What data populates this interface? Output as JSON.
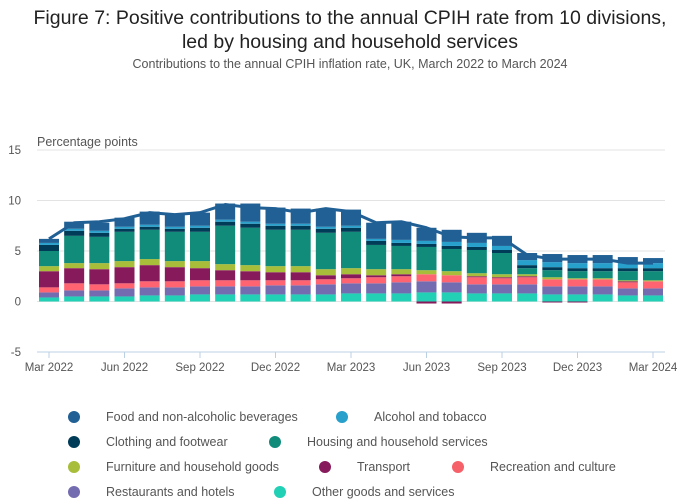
{
  "header": {
    "title_line1": "Figure 7: Positive contributions to the annual CPIH rate from 10 divisions,",
    "title_line2": "led by housing and household services",
    "subtitle": "Contributions to the annual CPIH inflation rate, UK, March 2022 to March 2024"
  },
  "chart_data": {
    "type": "bar",
    "stacked": true,
    "title": "Figure 7: Positive contributions to the annual CPIH rate from 10 divisions, led by housing and household services",
    "subtitle": "Contributions to the annual CPIH inflation rate, UK, March 2022 to March 2024",
    "xlabel": "",
    "ylabel": "Percentage points",
    "ylim": [
      -5,
      15
    ],
    "yticks": [
      15,
      10,
      5,
      0,
      -5
    ],
    "grid": true,
    "legend_position": "bottom",
    "categories": [
      "Mar 2022",
      "Apr 2022",
      "May 2022",
      "Jun 2022",
      "Jul 2022",
      "Aug 2022",
      "Sep 2022",
      "Oct 2022",
      "Nov 2022",
      "Dec 2022",
      "Jan 2023",
      "Feb 2023",
      "Mar 2023",
      "Apr 2023",
      "May 2023",
      "Jun 2023",
      "Jul 2023",
      "Aug 2023",
      "Sep 2023",
      "Oct 2023",
      "Nov 2023",
      "Dec 2023",
      "Jan 2024",
      "Feb 2024",
      "Mar 2024"
    ],
    "xtick_labels": [
      "Mar 2022",
      "Jun 2022",
      "Sep 2022",
      "Dec 2022",
      "Mar 2023",
      "Jun 2023",
      "Sep 2023",
      "Dec 2023",
      "Mar 2024"
    ],
    "series": [
      {
        "name": "Other goods and services",
        "color": "#22d0b6",
        "values": [
          0.4,
          0.5,
          0.5,
          0.5,
          0.6,
          0.6,
          0.7,
          0.7,
          0.7,
          0.7,
          0.7,
          0.7,
          0.8,
          0.8,
          0.8,
          0.9,
          0.9,
          0.8,
          0.8,
          0.8,
          0.7,
          0.7,
          0.7,
          0.6,
          0.6
        ]
      },
      {
        "name": "Restaurants and hotels",
        "color": "#746cb1",
        "values": [
          0.5,
          0.6,
          0.6,
          0.8,
          0.8,
          0.8,
          0.8,
          0.8,
          0.8,
          0.9,
          0.9,
          1.0,
          1.0,
          1.0,
          1.1,
          1.1,
          1.0,
          0.9,
          0.9,
          0.9,
          0.8,
          0.8,
          0.8,
          0.7,
          0.7
        ]
      },
      {
        "name": "Recreation and culture",
        "color": "#ff6470",
        "values": [
          0.5,
          0.7,
          0.6,
          0.5,
          0.6,
          0.6,
          0.6,
          0.6,
          0.6,
          0.5,
          0.5,
          0.5,
          0.5,
          0.6,
          0.6,
          0.7,
          0.7,
          0.7,
          0.6,
          0.7,
          0.7,
          0.7,
          0.7,
          0.6,
          0.7
        ]
      },
      {
        "name": "Transport",
        "color": "#871a5b",
        "values": [
          1.6,
          1.5,
          1.5,
          1.6,
          1.6,
          1.4,
          1.2,
          1.0,
          0.9,
          0.8,
          0.8,
          0.4,
          0.4,
          0.2,
          0.2,
          -0.2,
          -0.2,
          0.1,
          0.1,
          0.1,
          -0.1,
          -0.1,
          0.0,
          0.1,
          0.0
        ]
      },
      {
        "name": "Furniture and household goods",
        "color": "#a8bd3a",
        "values": [
          0.5,
          0.5,
          0.6,
          0.6,
          0.6,
          0.6,
          0.7,
          0.6,
          0.6,
          0.6,
          0.6,
          0.6,
          0.6,
          0.6,
          0.5,
          0.4,
          0.4,
          0.3,
          0.3,
          0.2,
          0.2,
          0.1,
          0.1,
          0.1,
          0.1
        ]
      },
      {
        "name": "Housing and household services",
        "color": "#118c7b",
        "values": [
          1.5,
          2.7,
          2.6,
          2.9,
          2.9,
          2.9,
          2.9,
          3.8,
          3.7,
          3.6,
          3.6,
          3.6,
          3.6,
          2.4,
          2.3,
          2.3,
          2.2,
          2.3,
          2.1,
          0.6,
          0.7,
          0.7,
          0.7,
          0.9,
          0.9
        ]
      },
      {
        "name": "Clothing and footwear",
        "color": "#003c57",
        "values": [
          0.6,
          0.5,
          0.4,
          0.3,
          0.3,
          0.3,
          0.4,
          0.4,
          0.4,
          0.4,
          0.4,
          0.4,
          0.4,
          0.4,
          0.3,
          0.3,
          0.3,
          0.3,
          0.3,
          0.3,
          0.3,
          0.3,
          0.3,
          0.3,
          0.3
        ]
      },
      {
        "name": "Alcohol and tobacco",
        "color": "#27a0cc",
        "values": [
          0.2,
          0.2,
          0.2,
          0.2,
          0.2,
          0.2,
          0.2,
          0.2,
          0.2,
          0.2,
          0.2,
          0.2,
          0.2,
          0.2,
          0.3,
          0.3,
          0.4,
          0.4,
          0.4,
          0.5,
          0.5,
          0.5,
          0.5,
          0.5,
          0.5
        ]
      },
      {
        "name": "Food and non-alcoholic beverages",
        "color": "#206095",
        "values": [
          0.4,
          0.7,
          0.8,
          0.9,
          1.3,
          1.3,
          1.3,
          1.6,
          1.8,
          1.6,
          1.5,
          1.8,
          1.6,
          1.6,
          1.8,
          1.3,
          1.2,
          1.0,
          1.0,
          0.7,
          0.8,
          0.8,
          0.8,
          0.6,
          0.5
        ]
      }
    ],
    "line": {
      "name": "CPIH",
      "color": "#206095",
      "values": [
        6.2,
        7.8,
        7.9,
        8.2,
        8.8,
        8.6,
        8.8,
        9.6,
        9.3,
        9.2,
        8.8,
        9.2,
        8.9,
        7.8,
        7.9,
        7.3,
        6.4,
        6.3,
        6.3,
        4.6,
        4.2,
        4.2,
        4.2,
        3.8,
        3.8
      ]
    }
  },
  "legend": {
    "items": [
      {
        "label": "Food and non-alcoholic beverages",
        "color": "#206095"
      },
      {
        "label": "Alcohol and tobacco",
        "color": "#27a0cc"
      },
      {
        "label": "Clothing and footwear",
        "color": "#003c57"
      },
      {
        "label": "Housing and household services",
        "color": "#118c7b"
      },
      {
        "label": "Furniture and household goods",
        "color": "#a8bd3a"
      },
      {
        "label": "Transport",
        "color": "#871a5b"
      },
      {
        "label": "Recreation and culture",
        "color": "#f66068"
      },
      {
        "label": "Restaurants and hotels",
        "color": "#746cb1"
      },
      {
        "label": "Other goods and services",
        "color": "#22d0b6"
      }
    ]
  }
}
